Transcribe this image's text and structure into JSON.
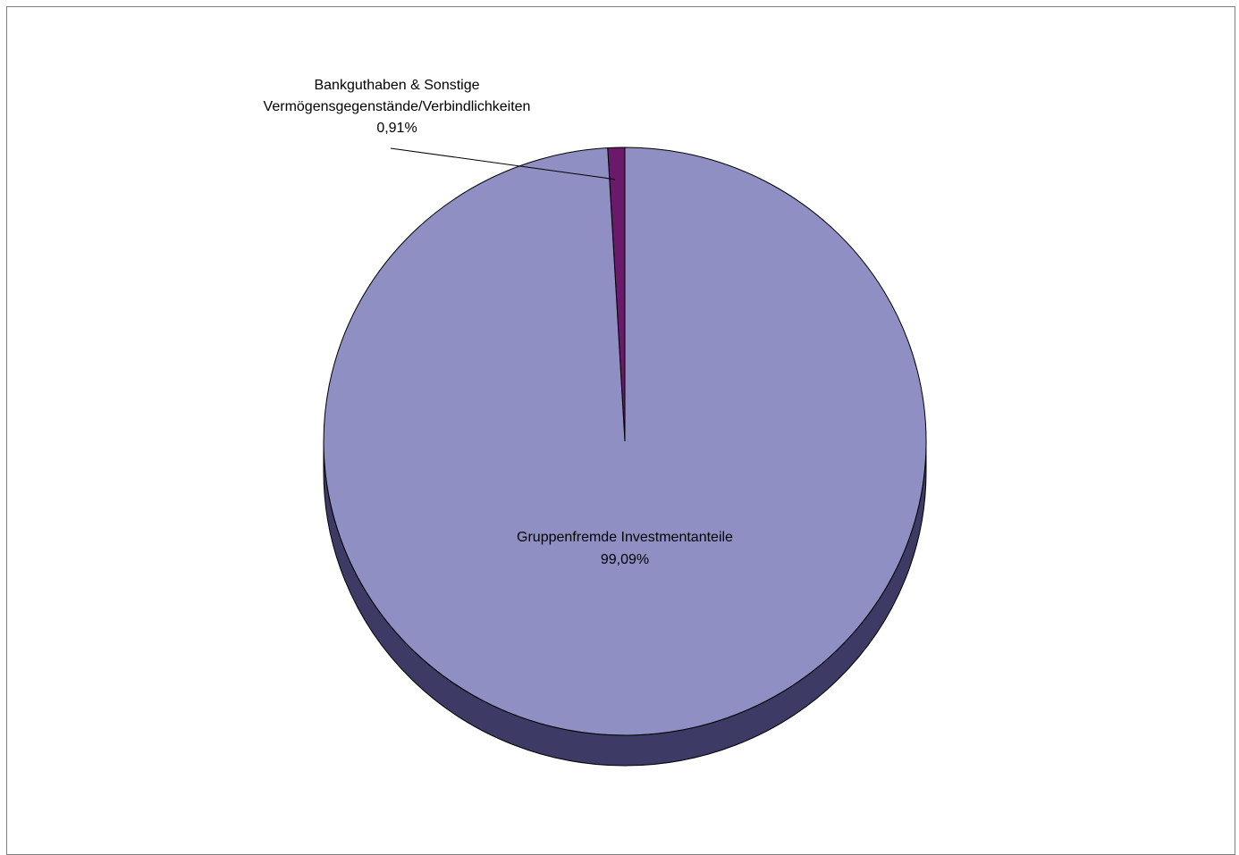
{
  "chart_data": {
    "type": "pie",
    "style": "3d",
    "title": "",
    "slices": [
      {
        "label_lines": [
          "Bankguthaben & Sonstige",
          "Vermögensgegenstände/Verbindlichkeiten"
        ],
        "value_label": "0,91%",
        "value": 0.91,
        "color": "#6b1a6b"
      },
      {
        "label_lines": [
          "Gruppenfremde Investmentanteile"
        ],
        "value_label": "99,09%",
        "value": 99.09,
        "color": "#8f8fc4"
      }
    ],
    "side_color": "#3d3b66",
    "legend": "none"
  }
}
